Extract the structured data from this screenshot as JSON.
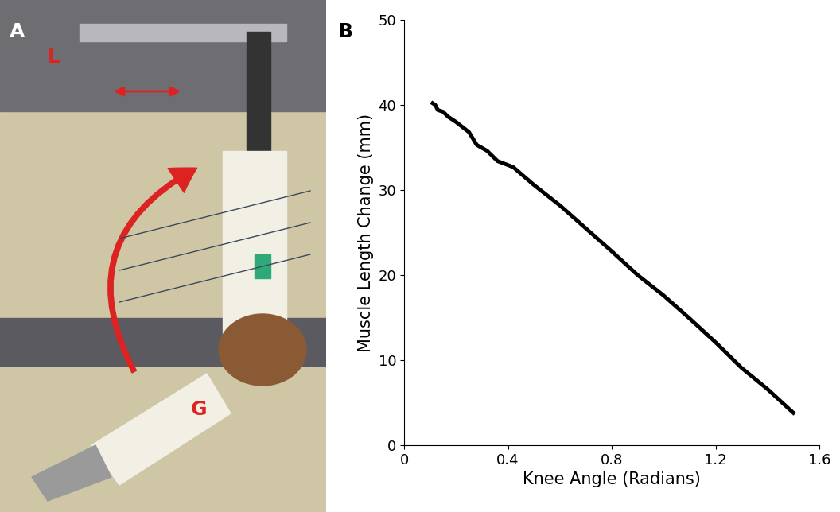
{
  "chart_data": {
    "type": "line",
    "panel_label": "B",
    "x_label": "Knee Angle (Radians)",
    "y_label": "Muscle Length Change (mm)",
    "x": [
      0.11,
      0.12,
      0.13,
      0.15,
      0.17,
      0.2,
      0.25,
      0.28,
      0.32,
      0.36,
      0.42,
      0.5,
      0.6,
      0.7,
      0.8,
      0.9,
      1.0,
      1.1,
      1.2,
      1.3,
      1.4,
      1.5
    ],
    "values": [
      40.2,
      40.0,
      39.4,
      39.2,
      38.6,
      38.0,
      36.8,
      35.3,
      34.6,
      33.4,
      32.7,
      30.6,
      28.2,
      25.5,
      22.8,
      20.0,
      17.6,
      14.9,
      12.1,
      9.1,
      6.6,
      3.8
    ],
    "xlim": [
      0,
      1.6
    ],
    "ylim": [
      0,
      50
    ],
    "xticks": [
      0,
      0.4,
      0.8,
      1.2,
      1.6
    ],
    "yticks": [
      0,
      10,
      20,
      30,
      40,
      50
    ],
    "color": "#000000",
    "grid": false
  },
  "photo": {
    "panel_label": "A",
    "markers": [
      "L",
      "G"
    ]
  }
}
